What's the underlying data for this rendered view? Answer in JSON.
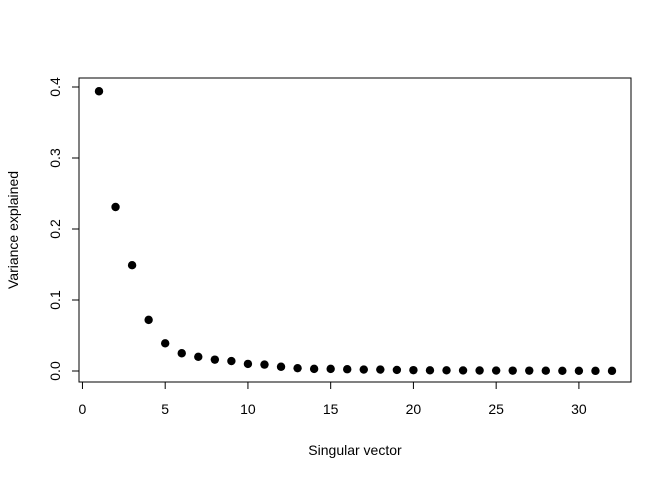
{
  "chart_data": {
    "type": "scatter",
    "title": "",
    "xlabel": "Singular vector",
    "ylabel": "Variance explained",
    "xlim": [
      1,
      32
    ],
    "ylim": [
      0,
      0.4
    ],
    "xticks": [
      0,
      5,
      10,
      15,
      20,
      25,
      30
    ],
    "yticks": [
      0.0,
      0.1,
      0.2,
      0.3,
      0.4
    ],
    "xtick_labels": [
      "0",
      "5",
      "10",
      "15",
      "20",
      "25",
      "30"
    ],
    "ytick_labels": [
      "0.0",
      "0.1",
      "0.2",
      "0.3",
      "0.4"
    ],
    "grid": false,
    "legend": "none",
    "point_color": "#000000",
    "x": [
      1,
      2,
      3,
      4,
      5,
      6,
      7,
      8,
      9,
      10,
      11,
      12,
      13,
      14,
      15,
      16,
      17,
      18,
      19,
      20,
      21,
      22,
      23,
      24,
      25,
      26,
      27,
      28,
      29,
      30,
      31,
      32
    ],
    "y": [
      0.394,
      0.231,
      0.149,
      0.072,
      0.039,
      0.025,
      0.02,
      0.016,
      0.014,
      0.01,
      0.009,
      0.006,
      0.004,
      0.003,
      0.003,
      0.0025,
      0.002,
      0.002,
      0.0015,
      0.0012,
      0.001,
      0.001,
      0.0008,
      0.0007,
      0.0006,
      0.0005,
      0.0005,
      0.0004,
      0.0003,
      0.0003,
      0.0002,
      0.0002
    ]
  }
}
